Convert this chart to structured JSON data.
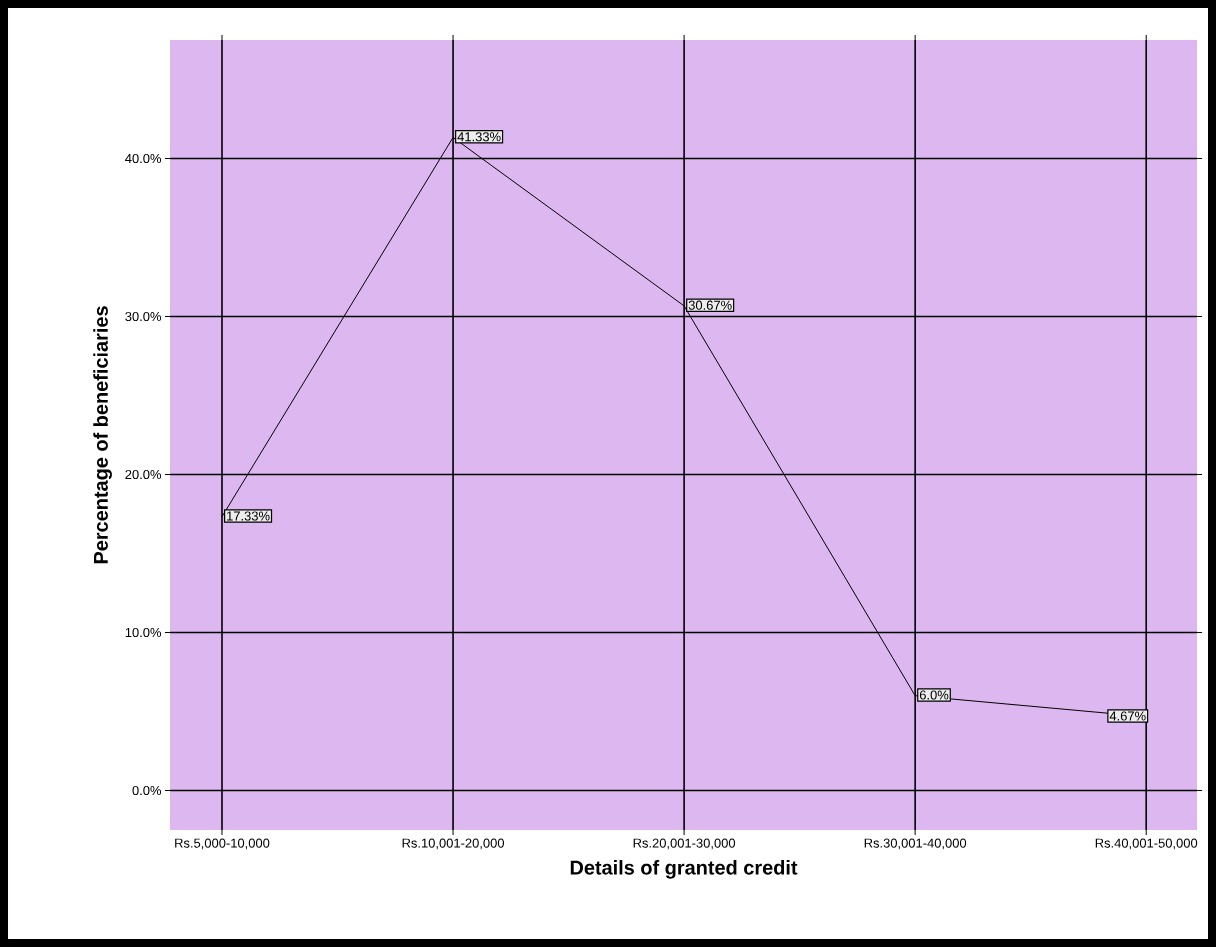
{
  "chart_data": {
    "type": "line",
    "xlabel": "Details of granted credit",
    "ylabel": "Percentage of beneficiaries",
    "categories": [
      "Rs.5,000-10,000",
      "Rs.10,001-20,000",
      "Rs.20,001-30,000",
      "Rs.30,001-40,000",
      "Rs.40,001-50,000"
    ],
    "values": [
      17.33,
      41.33,
      30.67,
      6.0,
      4.67
    ],
    "value_labels": [
      "17.33%",
      "41.33%",
      "30.67%",
      "6.0%",
      "4.67%"
    ],
    "color": "#000000",
    "marker": "none",
    "line_style": "solid",
    "grid": true,
    "ylim": [
      -2.5,
      47.5
    ],
    "yticks": [
      {
        "value": 0,
        "label": "0.0%"
      },
      {
        "value": 10,
        "label": "10.0%"
      },
      {
        "value": 20,
        "label": "20.0%"
      },
      {
        "value": 30,
        "label": "30.0%"
      },
      {
        "value": 40,
        "label": "40.0%"
      }
    ]
  }
}
